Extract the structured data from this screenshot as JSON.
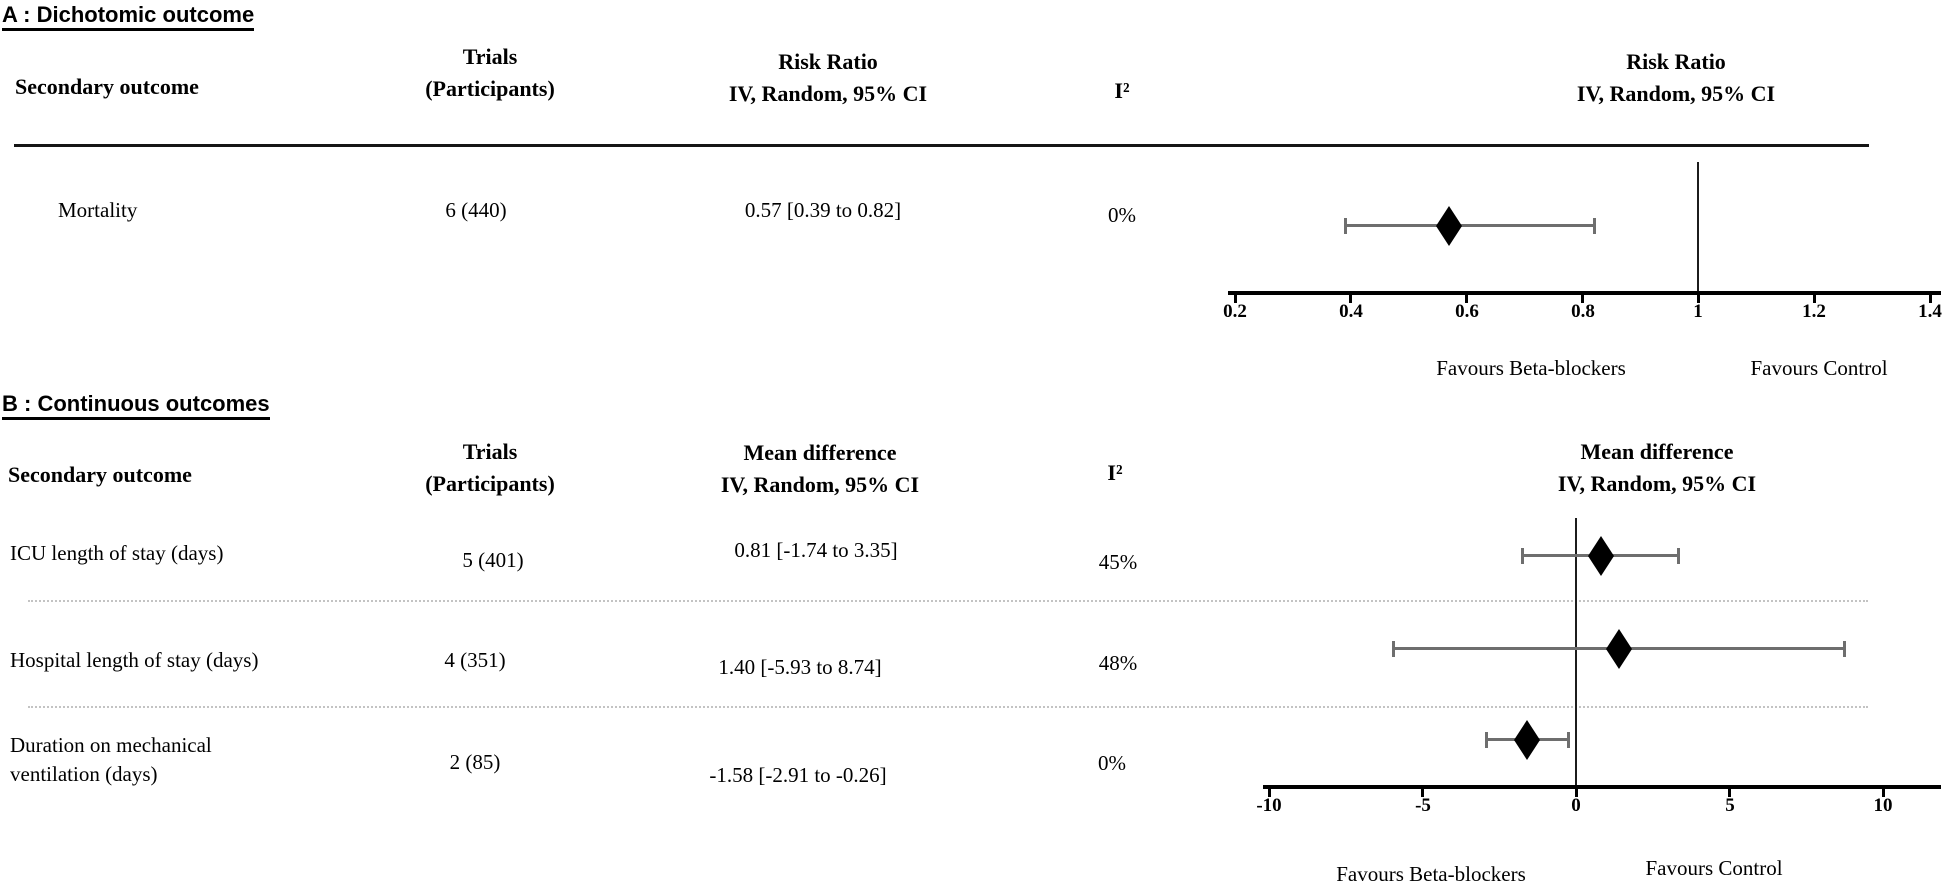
{
  "chart_data": [
    {
      "type": "scatter",
      "subtype": "forest_plot",
      "panel": "A",
      "title": "A : Dichotomic outcome",
      "effect_measure": "Risk Ratio",
      "model": "IV, Random, 95% CI",
      "columns": {
        "outcome": "Secondary outcome",
        "trials_1": "Trials",
        "trials_2": "(Participants)",
        "effect_1": "Risk Ratio",
        "effect_2": "IV, Random, 95% CI",
        "i2": "I²",
        "plot_1": "Risk Ratio",
        "plot_2": "IV, Random, 95% CI"
      },
      "xlim": [
        0.2,
        1.4
      ],
      "x_ticks": [
        0.2,
        0.4,
        0.6,
        0.8,
        1,
        1.2,
        1.4
      ],
      "x_tick_labels": [
        "0.2",
        "0.4",
        "0.6",
        "0.8",
        "1",
        "1.2",
        "1.4"
      ],
      "reference_line": 1,
      "favours_left": "Favours Beta-blockers",
      "favours_right": "Favours Control",
      "grid": false,
      "rows": [
        {
          "label": "Mortality",
          "trials": 6,
          "participants": 440,
          "trials_display": "6 (440)",
          "estimate": 0.57,
          "ci_lower": 0.39,
          "ci_upper": 0.82,
          "effect_display": "0.57 [0.39 to 0.82]",
          "i2": "0%"
        }
      ]
    },
    {
      "type": "scatter",
      "subtype": "forest_plot",
      "panel": "B",
      "title": "B : Continuous outcomes",
      "effect_measure": "Mean difference",
      "model": "IV, Random, 95% CI",
      "columns": {
        "outcome": "Secondary outcome",
        "trials_1": "Trials",
        "trials_2": "(Participants)",
        "effect_1": "Mean difference",
        "effect_2": "IV, Random, 95% CI",
        "i2": "I²",
        "plot_1": "Mean difference",
        "plot_2": "IV, Random, 95% CI"
      },
      "xlim": [
        -10,
        10
      ],
      "x_ticks": [
        -10,
        -5,
        0,
        5,
        10
      ],
      "x_tick_labels": [
        "-10",
        "-5",
        "0",
        "5",
        "10"
      ],
      "reference_line": 0,
      "favours_left": "Favours Beta-blockers",
      "favours_right": "Favours Control",
      "grid": false,
      "rows": [
        {
          "label": "ICU length of stay (days)",
          "trials": 5,
          "participants": 401,
          "trials_display": "5 (401)",
          "estimate": 0.81,
          "ci_lower": -1.74,
          "ci_upper": 3.35,
          "effect_display": "0.81 [-1.74 to 3.35]",
          "i2": "45%"
        },
        {
          "label": "Hospital length of stay (days)",
          "trials": 4,
          "participants": 351,
          "trials_display": "4 (351)",
          "estimate": 1.4,
          "ci_lower": -5.93,
          "ci_upper": 8.74,
          "effect_display": "1.40 [-5.93 to 8.74]",
          "i2": "48%"
        },
        {
          "label": "Duration on mechanical ventilation (days)",
          "label_line1": "Duration on mechanical",
          "label_line2": "ventilation (days)",
          "trials": 2,
          "participants": 85,
          "trials_display": "2 (85)",
          "estimate": -1.58,
          "ci_lower": -2.91,
          "ci_upper": -0.26,
          "effect_display": "-1.58 [-2.91 to -0.26]",
          "i2": "0%"
        }
      ]
    }
  ]
}
